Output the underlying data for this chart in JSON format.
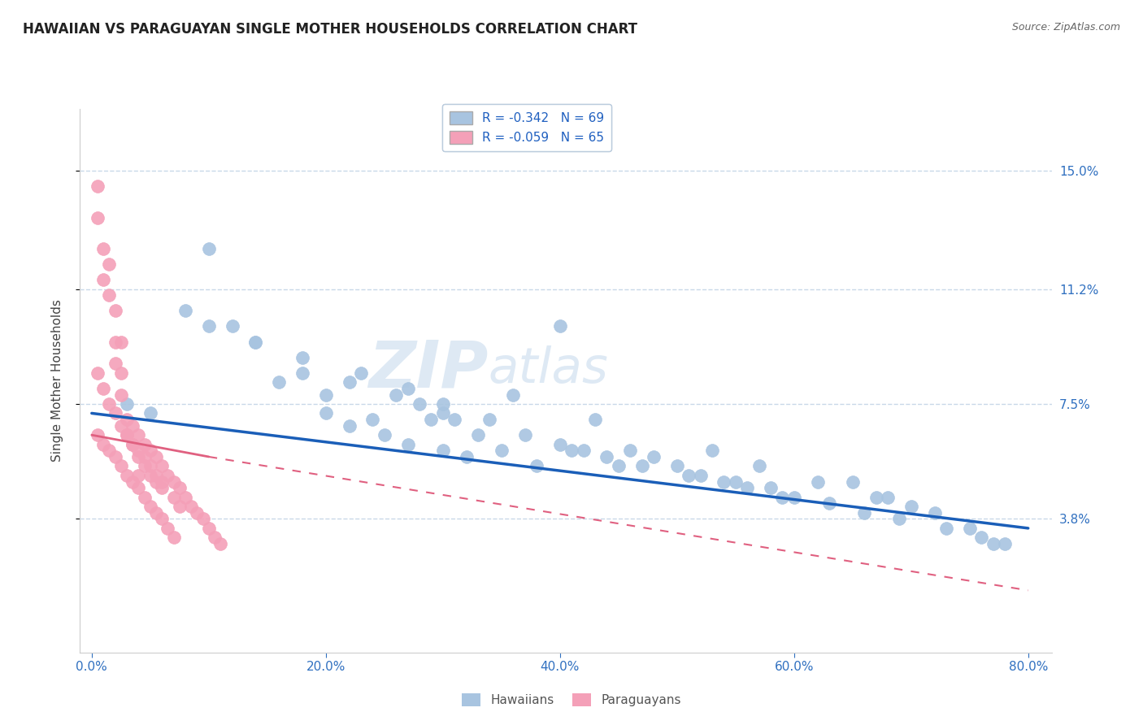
{
  "title": "HAWAIIAN VS PARAGUAYAN SINGLE MOTHER HOUSEHOLDS CORRELATION CHART",
  "source": "Source: ZipAtlas.com",
  "ylabel": "Single Mother Households",
  "xlabel_ticks": [
    "0.0%",
    "20.0%",
    "40.0%",
    "60.0%",
    "80.0%"
  ],
  "xlabel_vals": [
    0.0,
    20.0,
    40.0,
    60.0,
    80.0
  ],
  "ytick_labels": [
    "3.8%",
    "7.5%",
    "11.2%",
    "15.0%"
  ],
  "ytick_vals": [
    3.8,
    7.5,
    11.2,
    15.0
  ],
  "xlim": [
    -1.0,
    82.0
  ],
  "ylim": [
    -0.5,
    17.0
  ],
  "hawaiian_color": "#a8c4e0",
  "paraguayan_color": "#f4a0b8",
  "hawaiian_line_color": "#1a5eb8",
  "paraguayan_line_color": "#e06080",
  "legend_label_1": "R = -0.342   N = 69",
  "legend_label_2": "R = -0.059   N = 65",
  "watermark_zip": "ZIP",
  "watermark_atlas": "atlas",
  "background_color": "#ffffff",
  "grid_color": "#c8d8e8",
  "hawaiian_scatter_x": [
    3,
    5,
    8,
    10,
    12,
    14,
    16,
    18,
    20,
    20,
    22,
    22,
    24,
    25,
    26,
    27,
    28,
    29,
    30,
    30,
    31,
    32,
    33,
    35,
    36,
    38,
    40,
    42,
    43,
    45,
    46,
    48,
    50,
    52,
    53,
    55,
    57,
    58,
    60,
    62,
    65,
    67,
    68,
    70,
    72,
    75,
    77,
    78,
    10,
    14,
    18,
    23,
    27,
    30,
    34,
    37,
    41,
    44,
    47,
    51,
    54,
    56,
    59,
    63,
    66,
    69,
    73,
    76,
    40
  ],
  "hawaiian_scatter_y": [
    7.5,
    7.2,
    10.5,
    10.0,
    10.0,
    9.5,
    8.2,
    8.5,
    7.2,
    7.8,
    6.8,
    8.2,
    7.0,
    6.5,
    7.8,
    6.2,
    7.5,
    7.0,
    6.0,
    7.2,
    7.0,
    5.8,
    6.5,
    6.0,
    7.8,
    5.5,
    6.2,
    6.0,
    7.0,
    5.5,
    6.0,
    5.8,
    5.5,
    5.2,
    6.0,
    5.0,
    5.5,
    4.8,
    4.5,
    5.0,
    5.0,
    4.5,
    4.5,
    4.2,
    4.0,
    3.5,
    3.0,
    3.0,
    12.5,
    9.5,
    9.0,
    8.5,
    8.0,
    7.5,
    7.0,
    6.5,
    6.0,
    5.8,
    5.5,
    5.2,
    5.0,
    4.8,
    4.5,
    4.3,
    4.0,
    3.8,
    3.5,
    3.2,
    10.0
  ],
  "paraguayan_scatter_x": [
    0.5,
    0.5,
    1.0,
    1.0,
    1.5,
    1.5,
    2.0,
    2.0,
    2.0,
    2.5,
    2.5,
    2.5,
    3.0,
    3.0,
    3.5,
    3.5,
    4.0,
    4.0,
    4.0,
    4.5,
    4.5,
    5.0,
    5.0,
    5.5,
    5.5,
    6.0,
    6.0,
    6.5,
    7.0,
    7.0,
    7.5,
    7.5,
    8.0,
    8.5,
    9.0,
    9.5,
    10.0,
    10.5,
    11.0,
    0.5,
    1.0,
    1.5,
    2.0,
    2.5,
    3.0,
    3.5,
    4.0,
    4.5,
    5.0,
    5.5,
    6.0,
    0.5,
    1.0,
    1.5,
    2.0,
    2.5,
    3.0,
    3.5,
    4.0,
    4.5,
    5.0,
    5.5,
    6.0,
    6.5,
    7.0
  ],
  "paraguayan_scatter_y": [
    14.5,
    13.5,
    12.5,
    11.5,
    12.0,
    11.0,
    10.5,
    9.5,
    8.8,
    9.5,
    8.5,
    7.8,
    7.0,
    6.5,
    6.8,
    6.2,
    6.5,
    5.8,
    5.2,
    6.2,
    5.5,
    6.0,
    5.2,
    5.8,
    5.0,
    5.5,
    4.8,
    5.2,
    5.0,
    4.5,
    4.8,
    4.2,
    4.5,
    4.2,
    4.0,
    3.8,
    3.5,
    3.2,
    3.0,
    8.5,
    8.0,
    7.5,
    7.2,
    6.8,
    6.5,
    6.2,
    6.0,
    5.8,
    5.5,
    5.2,
    5.0,
    6.5,
    6.2,
    6.0,
    5.8,
    5.5,
    5.2,
    5.0,
    4.8,
    4.5,
    4.2,
    4.0,
    3.8,
    3.5,
    3.2
  ],
  "blue_line_x0": 0,
  "blue_line_x1": 80,
  "blue_line_y0": 7.2,
  "blue_line_y1": 3.5,
  "pink_solid_x0": 0,
  "pink_solid_x1": 10,
  "pink_solid_y0": 6.5,
  "pink_solid_y1": 5.8,
  "pink_dash_x0": 10,
  "pink_dash_x1": 80,
  "pink_dash_y0": 5.8,
  "pink_dash_y1": 1.5
}
